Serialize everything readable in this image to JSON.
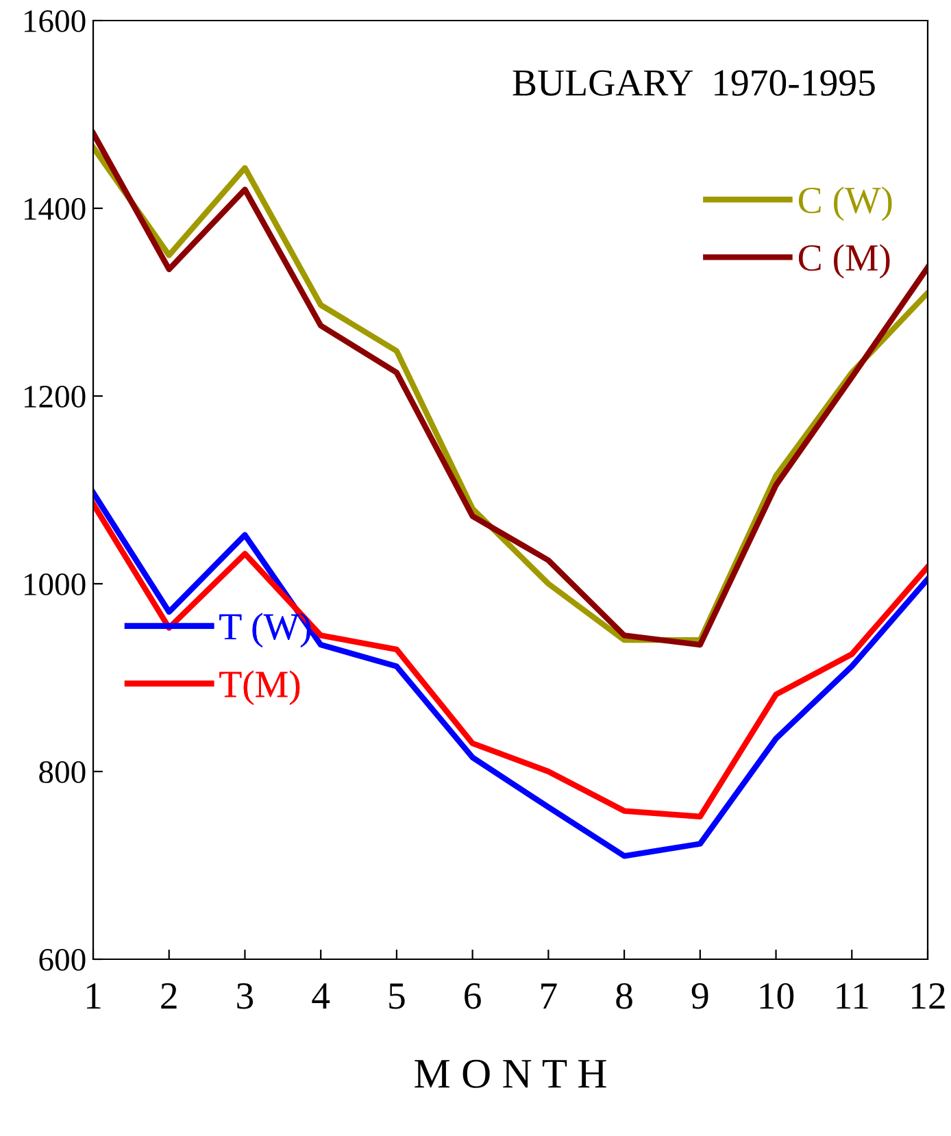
{
  "chart_data": {
    "type": "line",
    "title": "BULGARY  1970-1995",
    "xlabel": "M O N T H",
    "x": [
      1,
      2,
      3,
      4,
      5,
      6,
      7,
      8,
      9,
      10,
      11,
      12
    ],
    "xlim": [
      1,
      12
    ],
    "xticks": [
      1,
      2,
      3,
      4,
      5,
      6,
      7,
      8,
      9,
      10,
      11,
      12
    ],
    "ylim": [
      600,
      1600
    ],
    "yticks": [
      600,
      800,
      1000,
      1200,
      1400,
      1600
    ],
    "grid": false,
    "legend": "right",
    "marker": "none",
    "line_style": "solid",
    "series": [
      {
        "name": "C (W)",
        "color": "#a09a00",
        "values": [
          1465,
          1350,
          1443,
          1297,
          1248,
          1080,
          1000,
          940,
          940,
          1115,
          1225,
          1310
        ]
      },
      {
        "name": "C (M)",
        "color": "#8b0000",
        "values": [
          1480,
          1335,
          1420,
          1275,
          1225,
          1072,
          1025,
          945,
          935,
          1105,
          1220,
          1337
        ]
      },
      {
        "name": "T (W)",
        "color": "#0000ff",
        "values": [
          1097,
          970,
          1052,
          935,
          912,
          815,
          762,
          710,
          723,
          835,
          912,
          1005
        ]
      },
      {
        "name": "T(M)",
        "color": "#ff0000",
        "values": [
          1085,
          953,
          1032,
          945,
          930,
          830,
          800,
          758,
          752,
          882,
          925,
          1018
        ]
      }
    ]
  }
}
